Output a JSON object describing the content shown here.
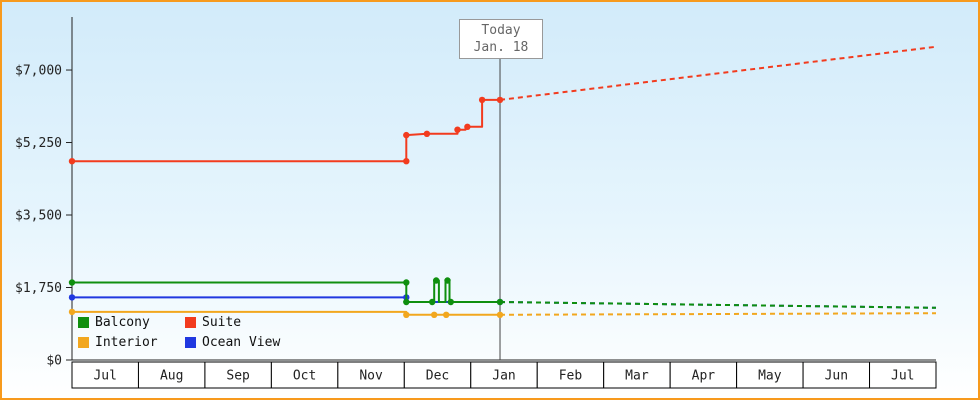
{
  "colors": {
    "border": "#f79a1d",
    "bg_top": "#d2ebfa",
    "bg_bottom": "#ffffff",
    "axis": "#222222",
    "today_line": "#444444",
    "today_box_border": "#999999",
    "today_text": "#666666",
    "month_box_border": "#000000",
    "month_box_fill": "#ffffff"
  },
  "chart_data": {
    "type": "line",
    "title": "",
    "xlabel": "",
    "ylabel": "",
    "ylim": [
      0,
      8280
    ],
    "x_unit": "months",
    "x_range": [
      0,
      13
    ],
    "grid": false,
    "legend_position": "bottom-left-inside",
    "y_ticks": [
      {
        "value": 0,
        "label": "$0"
      },
      {
        "value": 1750,
        "label": "$1,750"
      },
      {
        "value": 3500,
        "label": "$3,500"
      },
      {
        "value": 5250,
        "label": "$5,250"
      },
      {
        "value": 7000,
        "label": "$7,000"
      }
    ],
    "x_months": [
      "Jul",
      "Aug",
      "Sep",
      "Oct",
      "Nov",
      "Dec",
      "Jan",
      "Feb",
      "Mar",
      "Apr",
      "May",
      "Jun",
      "Jul"
    ],
    "today": {
      "x": 6.44,
      "line1": "Today",
      "line2": "Jan. 18"
    },
    "series": [
      {
        "name": "Suite",
        "color": "#f23b1e",
        "history": [
          [
            0,
            4800
          ],
          [
            5.03,
            4800
          ],
          [
            5.03,
            5430
          ],
          [
            5.34,
            5460
          ],
          [
            5.8,
            5460
          ],
          [
            5.8,
            5560
          ],
          [
            5.92,
            5560
          ],
          [
            5.92,
            5630
          ],
          [
            6.17,
            5630
          ],
          [
            6.17,
            6280
          ],
          [
            6.44,
            6280
          ]
        ],
        "forecast": [
          [
            6.44,
            6280
          ],
          [
            13,
            7560
          ]
        ],
        "dots": [
          [
            0,
            4800
          ],
          [
            5.03,
            4800
          ],
          [
            5.03,
            5430
          ],
          [
            5.34,
            5460
          ],
          [
            5.8,
            5560
          ],
          [
            5.95,
            5630
          ],
          [
            6.17,
            6280
          ],
          [
            6.44,
            6280
          ]
        ]
      },
      {
        "name": "Ocean View",
        "color": "#2038e0",
        "history": [
          [
            0,
            1510
          ],
          [
            5.03,
            1510
          ],
          [
            5.03,
            1400
          ],
          [
            6.44,
            1400
          ]
        ],
        "forecast": [
          [
            6.44,
            1400
          ],
          [
            13,
            1260
          ]
        ],
        "dots": [
          [
            0,
            1510
          ],
          [
            5.03,
            1510
          ],
          [
            6.44,
            1400
          ]
        ]
      },
      {
        "name": "Balcony",
        "color": "#0f8f0f",
        "history": [
          [
            0,
            1870
          ],
          [
            5.03,
            1870
          ],
          [
            5.03,
            1400
          ],
          [
            5.45,
            1400
          ],
          [
            5.45,
            1920
          ],
          [
            5.52,
            1920
          ],
          [
            5.52,
            1400
          ],
          [
            5.62,
            1400
          ],
          [
            5.62,
            1920
          ],
          [
            5.68,
            1920
          ],
          [
            5.68,
            1400
          ],
          [
            6.44,
            1400
          ]
        ],
        "forecast": [
          [
            6.44,
            1400
          ],
          [
            13,
            1260
          ]
        ],
        "dots": [
          [
            0,
            1870
          ],
          [
            5.03,
            1870
          ],
          [
            5.03,
            1400
          ],
          [
            5.42,
            1400
          ],
          [
            5.48,
            1920
          ],
          [
            5.65,
            1920
          ],
          [
            5.7,
            1400
          ],
          [
            6.44,
            1400
          ]
        ]
      },
      {
        "name": "Interior",
        "color": "#f2a71f",
        "history": [
          [
            0,
            1160
          ],
          [
            5.03,
            1160
          ],
          [
            5.03,
            1090
          ],
          [
            6.44,
            1090
          ]
        ],
        "forecast": [
          [
            6.44,
            1090
          ],
          [
            13,
            1130
          ]
        ],
        "dots": [
          [
            0,
            1160
          ],
          [
            5.03,
            1090
          ],
          [
            5.45,
            1090
          ],
          [
            5.63,
            1090
          ],
          [
            6.44,
            1090
          ]
        ]
      }
    ],
    "legend_rows": [
      [
        "Balcony",
        "Suite"
      ],
      [
        "Interior",
        "Ocean View"
      ]
    ]
  }
}
